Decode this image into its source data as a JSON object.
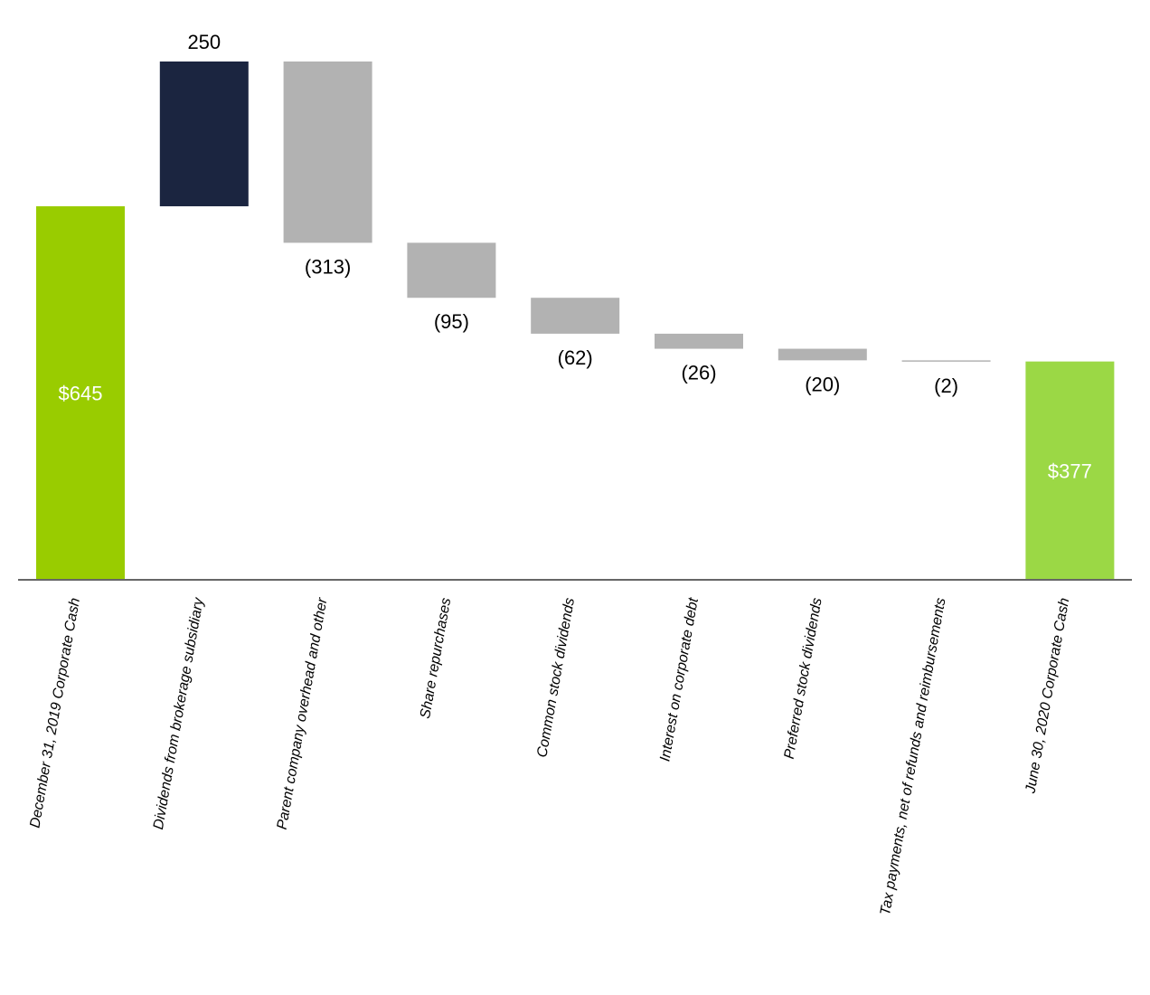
{
  "chart_data": {
    "type": "bar",
    "subtype": "waterfall",
    "title": "",
    "xlabel": "",
    "ylabel": "",
    "categories": [
      "December 31, 2019 Corporate Cash",
      "Dividends from brokerage subsidiary",
      "Parent company overhead and other",
      "Share repurchases",
      "Common stock dividends",
      "Interest on corporate debt",
      "Preferred stock dividends",
      "Tax payments, net of refunds and reimbursements",
      "June 30, 2020 Corporate Cash"
    ],
    "values": [
      645,
      250,
      -313,
      -95,
      -62,
      -26,
      -20,
      -2,
      377
    ],
    "kinds": [
      "total",
      "increase",
      "decrease",
      "decrease",
      "decrease",
      "decrease",
      "decrease",
      "decrease",
      "total"
    ],
    "data_labels": [
      "$645",
      "250",
      "(313)",
      "(95)",
      "(62)",
      "(26)",
      "(20)",
      "(2)",
      "$377"
    ],
    "ylim": [
      0,
      895
    ],
    "grid": false,
    "legend": "none"
  },
  "colors": {
    "start_total": "#99cc00",
    "end_total": "#9bd845",
    "increase": "#1b2540",
    "decrease": "#b2b2b2",
    "axis": "#666666",
    "total_label": "#ffffff",
    "delta_label": "#000000"
  }
}
